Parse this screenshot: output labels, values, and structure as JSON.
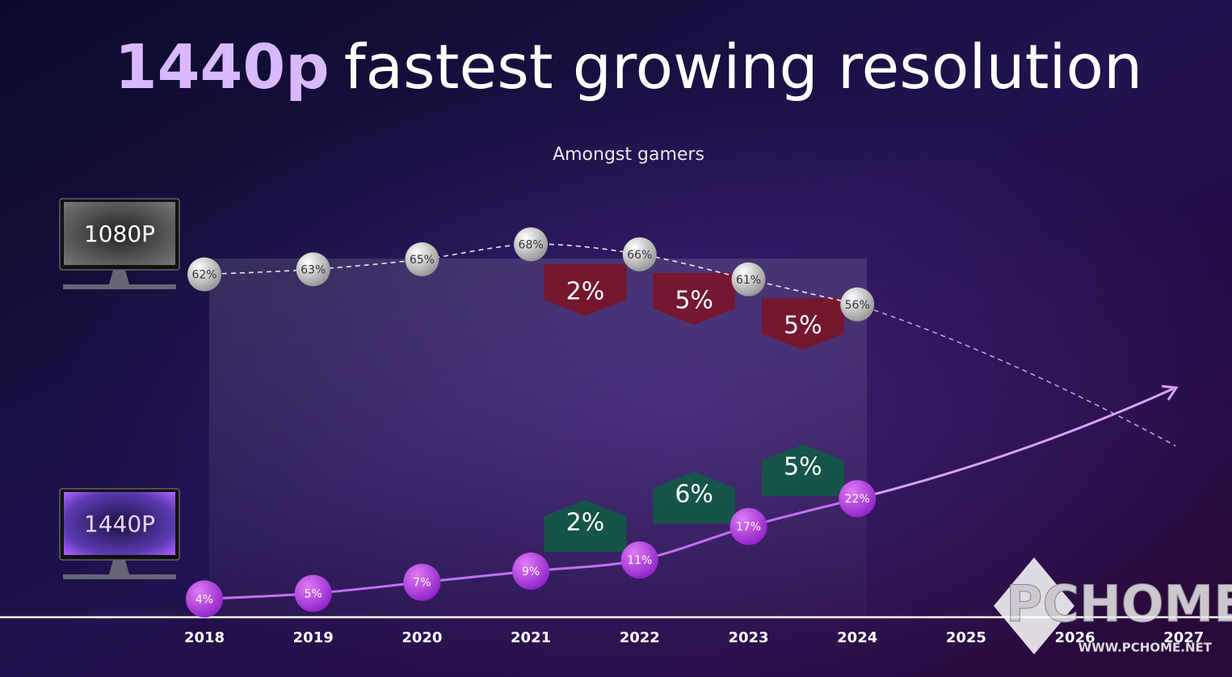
{
  "chart_data": {
    "type": "line",
    "title": [
      "1440p",
      "fastest growing resolution"
    ],
    "subtitle": "Amongst gamers",
    "categories": [
      "2018",
      "2019",
      "2020",
      "2021",
      "2022",
      "2023",
      "2024",
      "2025",
      "2026",
      "2027"
    ],
    "series": [
      {
        "name": "1080P",
        "color": "#d9d9d9",
        "values": [
          62,
          63,
          65,
          68,
          66,
          61,
          56,
          null,
          null,
          null
        ],
        "value_labels": [
          "62%",
          "63%",
          "65%",
          "68%",
          "66%",
          "61%",
          "56%",
          null,
          null,
          null
        ]
      },
      {
        "name": "1440P",
        "color": "#b03fe0",
        "axis": "y2",
        "values": [
          4,
          5,
          7,
          9,
          11,
          17,
          22,
          null,
          null,
          null
        ],
        "value_labels": [
          "4%",
          "5%",
          "7%",
          "9%",
          "11%",
          "17%",
          "22%",
          null,
          null,
          null
        ]
      }
    ],
    "decline_labels": {
      "color": "#7a1428",
      "values": [
        2,
        5,
        5
      ],
      "value_labels": [
        "2%",
        "5%",
        "5%"
      ]
    },
    "growth_labels": {
      "color": "#135a45",
      "values": [
        2,
        6,
        5
      ],
      "value_labels": [
        "2%",
        "6%",
        "5%"
      ]
    },
    "ylim": [
      40,
      80
    ],
    "y2lim": [
      0,
      30
    ],
    "grid": false
  },
  "watermark": {
    "logo": "PCHOME",
    "url": "WWW.PCHOME.NET"
  }
}
